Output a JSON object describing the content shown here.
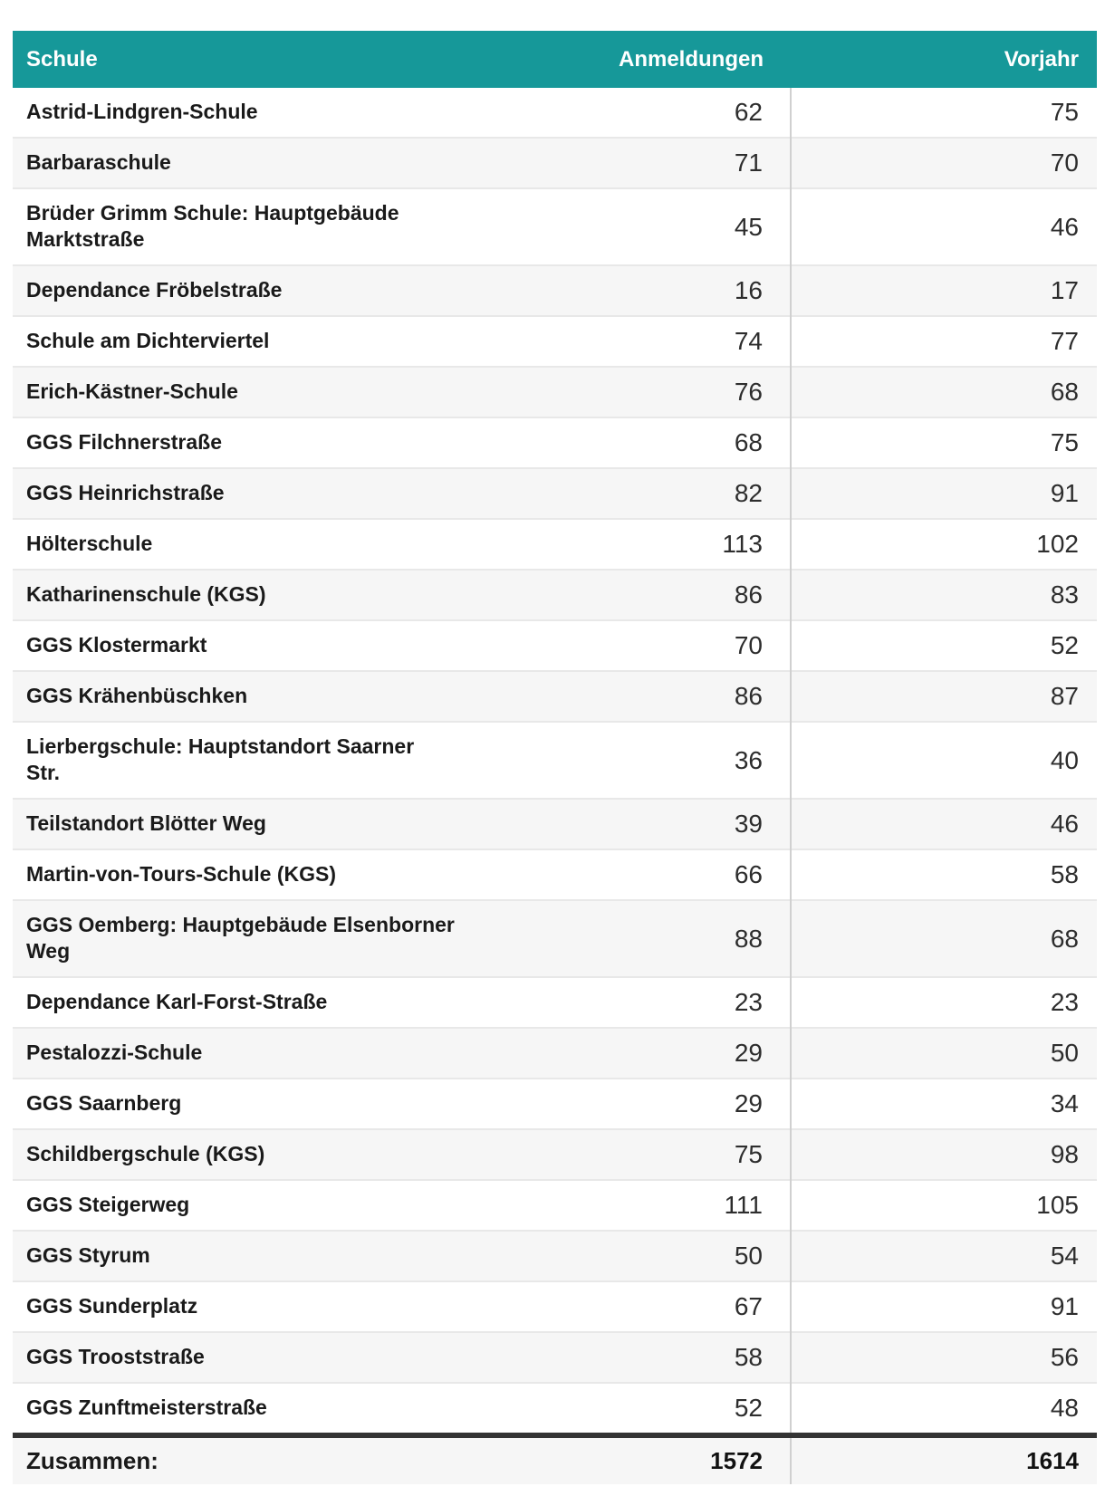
{
  "chart_data": {
    "type": "table",
    "columns": [
      "Schule",
      "Anmeldungen",
      "Vorjahr"
    ],
    "rows": [
      [
        "Astrid-Lindgren-Schule",
        62,
        75
      ],
      [
        "Barbaraschule",
        71,
        70
      ],
      [
        "Brüder Grimm Schule: Hauptgebäude\nMarktstraße",
        45,
        46
      ],
      [
        "Dependance Fröbelstraße",
        16,
        17
      ],
      [
        "Schule am Dichterviertel",
        74,
        77
      ],
      [
        "Erich-Kästner-Schule",
        76,
        68
      ],
      [
        "GGS Filchnerstraße",
        68,
        75
      ],
      [
        "GGS Heinrichstraße",
        82,
        91
      ],
      [
        "Hölterschule",
        113,
        102
      ],
      [
        "Katharinenschule (KGS)",
        86,
        83
      ],
      [
        "GGS Klostermarkt",
        70,
        52
      ],
      [
        "GGS Krähenbüschken",
        86,
        87
      ],
      [
        "Lierbergschule: Hauptstandort Saarner\nStr.",
        36,
        40
      ],
      [
        "Teilstandort Blötter Weg",
        39,
        46
      ],
      [
        "Martin-von-Tours-Schule (KGS)",
        66,
        58
      ],
      [
        "GGS Oemberg: Hauptgebäude Elsenborner\nWeg",
        88,
        68
      ],
      [
        "Dependance Karl-Forst-Straße",
        23,
        23
      ],
      [
        "Pestalozzi-Schule",
        29,
        50
      ],
      [
        "GGS Saarnberg",
        29,
        34
      ],
      [
        "Schildbergschule (KGS)",
        75,
        98
      ],
      [
        "GGS Steigerweg",
        111,
        105
      ],
      [
        "GGS Styrum",
        50,
        54
      ],
      [
        "GGS Sunderplatz",
        67,
        91
      ],
      [
        "GGS Trooststraße",
        58,
        56
      ],
      [
        "GGS Zunftmeisterstraße",
        52,
        48
      ]
    ],
    "footer": [
      "Zusammen:",
      1572,
      1614
    ],
    "layout_hints": {
      "zebra_striping": true,
      "vertical_divider_before_last_column": true,
      "thick_border_above_footer": true
    }
  },
  "colors": {
    "header_bg": "#169899",
    "header_text": "#ffffff",
    "row_alt_bg": "#f6f6f6",
    "row_border": "#e8e8e8",
    "divider": "#d0d0d0",
    "name_text": "#1a1a1a",
    "number_text": "#2d2d2d",
    "total_border": "#333333",
    "total_text": "#111111"
  }
}
